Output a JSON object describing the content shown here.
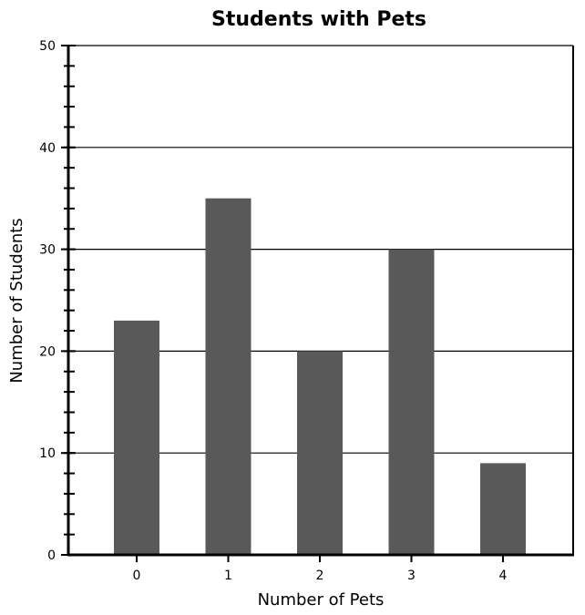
{
  "chart_data": {
    "type": "bar",
    "title": "Students with Pets",
    "xlabel": "Number of Pets",
    "ylabel": "Number of Students",
    "categories": [
      "0",
      "1",
      "2",
      "3",
      "4"
    ],
    "values": [
      23,
      35,
      20,
      30,
      9
    ],
    "ylim": [
      0,
      50
    ],
    "yticks": [
      "0",
      "10",
      "20",
      "30",
      "40",
      "50"
    ],
    "minor_tick_step": 2,
    "grid": true,
    "bar_color": "#595959",
    "grid_color": "#000000"
  }
}
